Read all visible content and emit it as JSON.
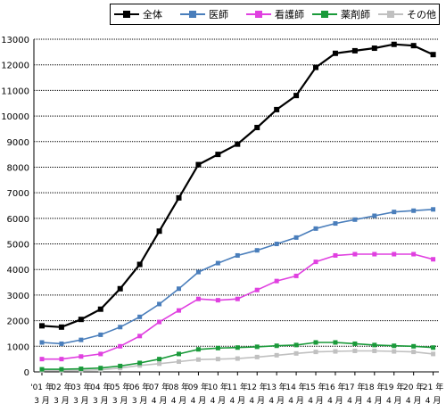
{
  "chart_data": {
    "type": "line",
    "title": "",
    "xlabel": "",
    "ylabel": "",
    "ylim": [
      0,
      13000
    ],
    "yticks": [
      0,
      1000,
      2000,
      3000,
      4000,
      5000,
      6000,
      7000,
      8000,
      9000,
      10000,
      11000,
      12000,
      13000
    ],
    "grid": "horizontal",
    "legend_position": "top",
    "categories": [
      "'01 年3 月",
      "02 年3 月",
      "03 年3 月",
      "04 年3 月",
      "05 年3 月",
      "06 年3 月",
      "07 年4 月",
      "08 年4 月",
      "09 年4 月",
      "10 年4 月",
      "11 年4 月",
      "12 年4 月",
      "13 年4 月",
      "14 年4 月",
      "15 年4 月",
      "16 年4 月",
      "17 年4 月",
      "18 年4 月",
      "19 年4 月",
      "20 年4 月",
      "21 年4 月"
    ],
    "x_tick_top": [
      "'01 年",
      "02 年",
      "03 年",
      "04 年",
      "05 年",
      "06 年",
      "07 年",
      "08 年",
      "09 年",
      "10 年",
      "11 年",
      "12 年",
      "13 年",
      "14 年",
      "15 年",
      "16 年",
      "17 年",
      "18 年",
      "19 年",
      "20 年",
      "21 年"
    ],
    "x_tick_bottom": [
      "3 月",
      "3 月",
      "3 月",
      "3 月",
      "3 月",
      "3 月",
      "4 月",
      "4 月",
      "4 月",
      "4 月",
      "4 月",
      "4 月",
      "4 月",
      "4 月",
      "4 月",
      "4 月",
      "4 月",
      "4 月",
      "4 月",
      "4 月",
      "4 月"
    ],
    "series": [
      {
        "name": "全体",
        "color": "#000000",
        "values": [
          1800,
          1750,
          2050,
          2450,
          3250,
          4200,
          5500,
          6800,
          8100,
          8500,
          8900,
          9550,
          10250,
          10800,
          11900,
          12450,
          12550,
          12650,
          12800,
          12750,
          12400
        ]
      },
      {
        "name": "医師",
        "color": "#4a7ebb",
        "values": [
          1150,
          1100,
          1250,
          1450,
          1750,
          2150,
          2650,
          3250,
          3900,
          4250,
          4550,
          4750,
          5000,
          5250,
          5600,
          5800,
          5950,
          6100,
          6250,
          6300,
          6350
        ]
      },
      {
        "name": "看護師",
        "color": "#e040e0",
        "values": [
          500,
          500,
          600,
          700,
          1000,
          1400,
          1950,
          2400,
          2850,
          2800,
          2850,
          3200,
          3550,
          3750,
          4300,
          4550,
          4600,
          4600,
          4600,
          4600,
          4400
        ]
      },
      {
        "name": "薬剤師",
        "color": "#1a9a3a",
        "values": [
          100,
          100,
          120,
          150,
          230,
          350,
          500,
          700,
          880,
          930,
          950,
          980,
          1020,
          1050,
          1150,
          1150,
          1100,
          1050,
          1020,
          1000,
          950
        ]
      },
      {
        "name": "その他",
        "color": "#c0c0c0",
        "values": [
          50,
          50,
          60,
          80,
          150,
          250,
          320,
          400,
          480,
          500,
          520,
          580,
          650,
          720,
          780,
          800,
          820,
          820,
          800,
          780,
          700
        ]
      }
    ]
  }
}
